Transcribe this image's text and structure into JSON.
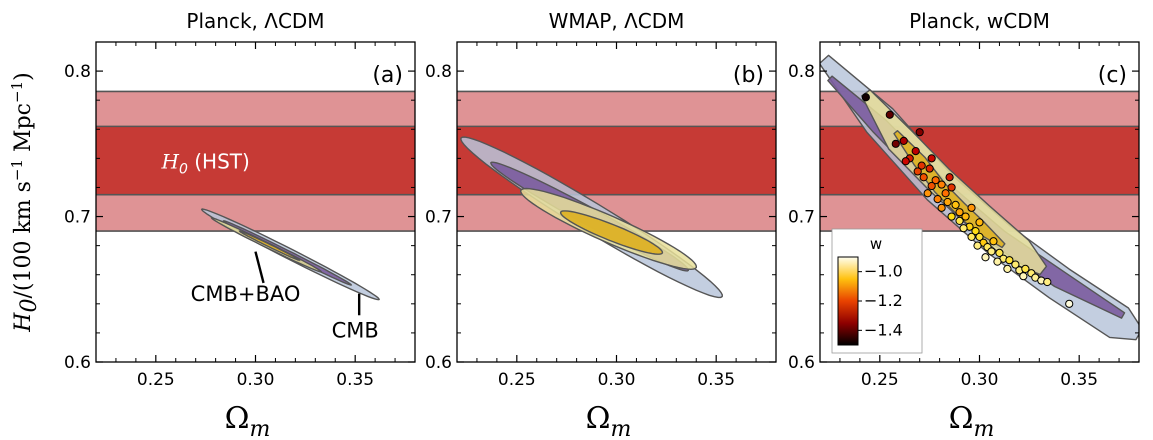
{
  "y_axis_label": "H0/(100 km s−1 Mpc−1)",
  "colorbar": {
    "title": "w",
    "ticks": [
      "−1.0",
      "−1.2",
      "−1.4"
    ]
  },
  "chart_data": [
    {
      "type": "contour",
      "title": "Planck, ΛCDM",
      "panel_label": "(a)",
      "xlabel": "Ωm",
      "ylabel": "H0/(100 km s−1 Mpc−1)",
      "xlim": [
        0.22,
        0.38
      ],
      "ylim": [
        0.6,
        0.82
      ],
      "xticks": [
        "0.25",
        "0.30",
        "0.35"
      ],
      "yticks": [
        "0.6",
        "0.7",
        "0.8"
      ],
      "h0_band": {
        "label": "H0 (HST)",
        "center": 0.738,
        "inner": [
          0.715,
          0.762
        ],
        "outer": [
          0.69,
          0.786
        ]
      },
      "contours": [
        {
          "name": "CMB",
          "level": "outer",
          "center": [
            0.315,
            0.673
          ],
          "p1": [
            0.273,
            0.705
          ],
          "p2": [
            0.362,
            0.643
          ],
          "halfwidth": 0.0035
        },
        {
          "name": "CMB",
          "level": "inner",
          "center": [
            0.313,
            0.675
          ],
          "p1": [
            0.284,
            0.697
          ],
          "p2": [
            0.348,
            0.653
          ],
          "halfwidth": 0.0017
        },
        {
          "name": "CMB+BAO",
          "level": "outer",
          "center": [
            0.305,
            0.68
          ],
          "p1": [
            0.278,
            0.699
          ],
          "p2": [
            0.333,
            0.662
          ],
          "halfwidth": 0.0017
        },
        {
          "name": "CMB+BAO",
          "level": "inner",
          "center": [
            0.306,
            0.68
          ],
          "p1": [
            0.292,
            0.69
          ],
          "p2": [
            0.322,
            0.67
          ],
          "halfwidth": 0.0009
        }
      ],
      "annotations": [
        {
          "text": "CMB+BAO",
          "at": [
            0.295,
            0.642
          ],
          "points_to": [
            0.305,
            0.68
          ]
        },
        {
          "text": "CMB",
          "at": [
            0.35,
            0.617
          ],
          "points_to": [
            0.352,
            0.647
          ]
        }
      ]
    },
    {
      "type": "contour",
      "title": "WMAP, ΛCDM",
      "panel_label": "(b)",
      "xlabel": "Ωm",
      "xlim": [
        0.22,
        0.38
      ],
      "ylim": [
        0.6,
        0.82
      ],
      "xticks": [
        "0.25",
        "0.30",
        "0.35"
      ],
      "yticks": [
        "0.6",
        "0.7",
        "0.8"
      ],
      "h0_band": {
        "center": 0.738,
        "inner": [
          0.715,
          0.762
        ],
        "outer": [
          0.69,
          0.786
        ]
      },
      "contours": [
        {
          "name": "CMB",
          "level": "outer",
          "center": [
            0.285,
            0.7
          ],
          "p1": [
            0.222,
            0.754
          ],
          "p2": [
            0.353,
            0.645
          ],
          "halfwidth": 0.01
        },
        {
          "name": "CMB",
          "level": "inner",
          "center": [
            0.28,
            0.703
          ],
          "p1": [
            0.237,
            0.737
          ],
          "p2": [
            0.336,
            0.663
          ],
          "halfwidth": 0.006
        },
        {
          "name": "CMB+BAO",
          "level": "outer",
          "center": [
            0.296,
            0.69
          ],
          "p1": [
            0.252,
            0.718
          ],
          "p2": [
            0.34,
            0.665
          ],
          "halfwidth": 0.009
        },
        {
          "name": "CMB+BAO",
          "level": "inner",
          "center": [
            0.297,
            0.69
          ],
          "p1": [
            0.272,
            0.703
          ],
          "p2": [
            0.323,
            0.675
          ],
          "halfwidth": 0.0055
        }
      ]
    },
    {
      "type": "contour+scatter",
      "title": "Planck, wCDM",
      "panel_label": "(c)",
      "xlabel": "Ωm",
      "xlim": [
        0.22,
        0.38
      ],
      "ylim": [
        0.6,
        0.82
      ],
      "xticks": [
        "0.25",
        "0.30",
        "0.35"
      ],
      "yticks": [
        "0.6",
        "0.7",
        "0.8"
      ],
      "h0_band": {
        "center": 0.738,
        "inner": [
          0.715,
          0.762
        ],
        "outer": [
          0.69,
          0.786
        ]
      },
      "curved_contours": [
        {
          "name": "CMB",
          "level": "outer",
          "spine": [
            [
              0.222,
              0.808
            ],
            [
              0.25,
              0.766
            ],
            [
              0.28,
              0.72
            ],
            [
              0.31,
              0.684
            ],
            [
              0.34,
              0.654
            ],
            [
              0.37,
              0.627
            ],
            [
              0.38,
              0.619
            ]
          ],
          "halfwidth": 0.012
        },
        {
          "name": "CMB",
          "level": "inner",
          "spine": [
            [
              0.225,
              0.795
            ],
            [
              0.25,
              0.762
            ],
            [
              0.28,
              0.72
            ],
            [
              0.31,
              0.685
            ],
            [
              0.34,
              0.657
            ],
            [
              0.372,
              0.632
            ]
          ],
          "halfwidth": 0.006
        },
        {
          "name": "CMB+BAO",
          "level": "outer",
          "spine": [
            [
              0.243,
              0.785
            ],
            [
              0.26,
              0.753
            ],
            [
              0.28,
              0.725
            ],
            [
              0.3,
              0.7
            ],
            [
              0.32,
              0.676
            ],
            [
              0.332,
              0.663
            ]
          ],
          "halfwidth": 0.01
        },
        {
          "name": "CMB+BAO",
          "level": "inner",
          "spine": [
            [
              0.258,
              0.758
            ],
            [
              0.27,
              0.738
            ],
            [
              0.28,
              0.72
            ],
            [
              0.29,
              0.706
            ],
            [
              0.3,
              0.693
            ],
            [
              0.312,
              0.68
            ]
          ],
          "halfwidth": 0.0045
        }
      ],
      "scatter": {
        "color_variable": "w",
        "clim": [
          -1.5,
          -0.9
        ],
        "points": [
          [
            0.243,
            0.782,
            -1.48
          ],
          [
            0.255,
            0.77,
            -1.4
          ],
          [
            0.262,
            0.752,
            -1.32
          ],
          [
            0.258,
            0.75,
            -1.38
          ],
          [
            0.268,
            0.745,
            -1.3
          ],
          [
            0.265,
            0.74,
            -1.25
          ],
          [
            0.263,
            0.738,
            -1.28
          ],
          [
            0.271,
            0.735,
            -1.22
          ],
          [
            0.269,
            0.731,
            -1.2
          ],
          [
            0.275,
            0.733,
            -1.24
          ],
          [
            0.272,
            0.727,
            -1.18
          ],
          [
            0.278,
            0.725,
            -1.15
          ],
          [
            0.276,
            0.721,
            -1.18
          ],
          [
            0.281,
            0.722,
            -1.12
          ],
          [
            0.274,
            0.716,
            -1.1
          ],
          [
            0.283,
            0.716,
            -1.14
          ],
          [
            0.286,
            0.72,
            -1.22
          ],
          [
            0.279,
            0.712,
            -1.12
          ],
          [
            0.284,
            0.71,
            -1.08
          ],
          [
            0.288,
            0.708,
            -1.05
          ],
          [
            0.281,
            0.706,
            -1.1
          ],
          [
            0.29,
            0.703,
            -1.08
          ],
          [
            0.286,
            0.7,
            -1.02
          ],
          [
            0.293,
            0.7,
            -1.06
          ],
          [
            0.29,
            0.697,
            -0.99
          ],
          [
            0.295,
            0.693,
            -1.03
          ],
          [
            0.292,
            0.692,
            -0.97
          ],
          [
            0.298,
            0.69,
            -1.02
          ],
          [
            0.296,
            0.686,
            -0.98
          ],
          [
            0.3,
            0.686,
            -1.0
          ],
          [
            0.302,
            0.682,
            -1.04
          ],
          [
            0.299,
            0.68,
            -0.96
          ],
          [
            0.304,
            0.679,
            -0.98
          ],
          [
            0.307,
            0.683,
            -1.05
          ],
          [
            0.306,
            0.676,
            -0.96
          ],
          [
            0.31,
            0.675,
            -0.99
          ],
          [
            0.303,
            0.672,
            -0.93
          ],
          [
            0.312,
            0.671,
            -0.97
          ],
          [
            0.309,
            0.669,
            -0.94
          ],
          [
            0.315,
            0.67,
            -1.0
          ],
          [
            0.318,
            0.667,
            -0.97
          ],
          [
            0.314,
            0.664,
            -0.94
          ],
          [
            0.32,
            0.663,
            -0.96
          ],
          [
            0.323,
            0.664,
            -0.99
          ],
          [
            0.322,
            0.659,
            -0.93
          ],
          [
            0.326,
            0.661,
            -0.97
          ],
          [
            0.328,
            0.658,
            -0.95
          ],
          [
            0.331,
            0.656,
            -0.93
          ],
          [
            0.334,
            0.655,
            -0.96
          ],
          [
            0.345,
            0.64,
            -0.91
          ],
          [
            0.296,
            0.706,
            -1.1
          ],
          [
            0.285,
            0.727,
            -1.26
          ],
          [
            0.3,
            0.696,
            -1.06
          ],
          [
            0.276,
            0.74,
            -1.28
          ],
          [
            0.27,
            0.758,
            -1.36
          ]
        ]
      },
      "colorbar": {
        "label": "w",
        "ticks": [
          "−1.0",
          "−1.2",
          "−1.4"
        ]
      }
    }
  ]
}
